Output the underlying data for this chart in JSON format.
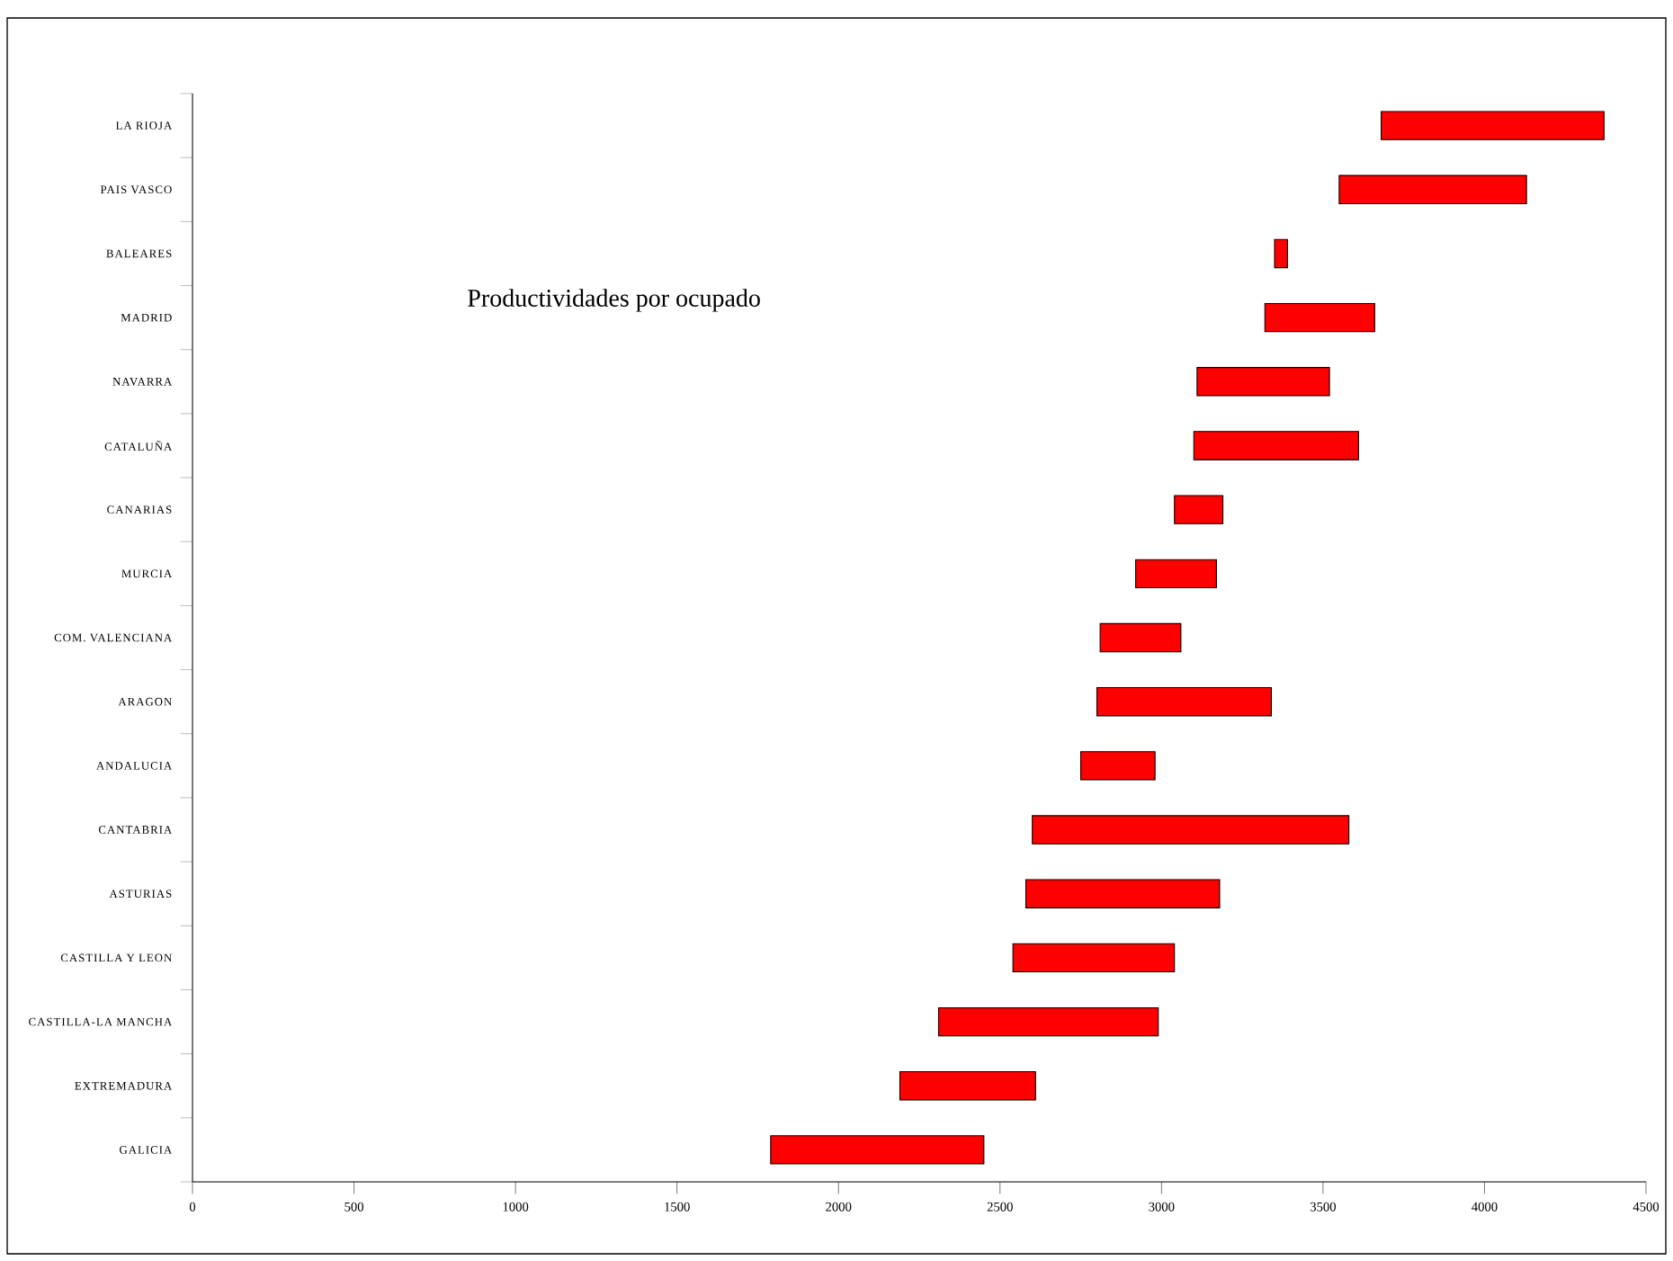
{
  "chart_data": {
    "type": "bar",
    "orientation": "horizontal",
    "title": "Productividades por ocupado",
    "categories": [
      "LA RIOJA",
      "PAIS VASCO",
      "BALEARES",
      "MADRID",
      "NAVARRA",
      "CATALUÑA",
      "CANARIAS",
      "MURCIA",
      "COM. VALENCIANA",
      "ARAGON",
      "ANDALUCIA",
      "CANTABRIA",
      "ASTURIAS",
      "CASTILLA Y LEON",
      "CASTILLA-LA MANCHA",
      "EXTREMADURA",
      "GALICIA"
    ],
    "base": [
      3680,
      3550,
      3350,
      3320,
      3110,
      3100,
      3040,
      2920,
      2810,
      2800,
      2750,
      2600,
      2580,
      2540,
      2310,
      2190,
      1790
    ],
    "values": [
      690,
      580,
      40,
      340,
      410,
      510,
      150,
      250,
      250,
      540,
      230,
      980,
      600,
      500,
      680,
      420,
      660
    ],
    "color": "#ff0000",
    "xlim": [
      0,
      4500
    ],
    "xticks": [
      0,
      500,
      1000,
      1500,
      2000,
      2500,
      3000,
      3500,
      4000,
      4500
    ]
  }
}
